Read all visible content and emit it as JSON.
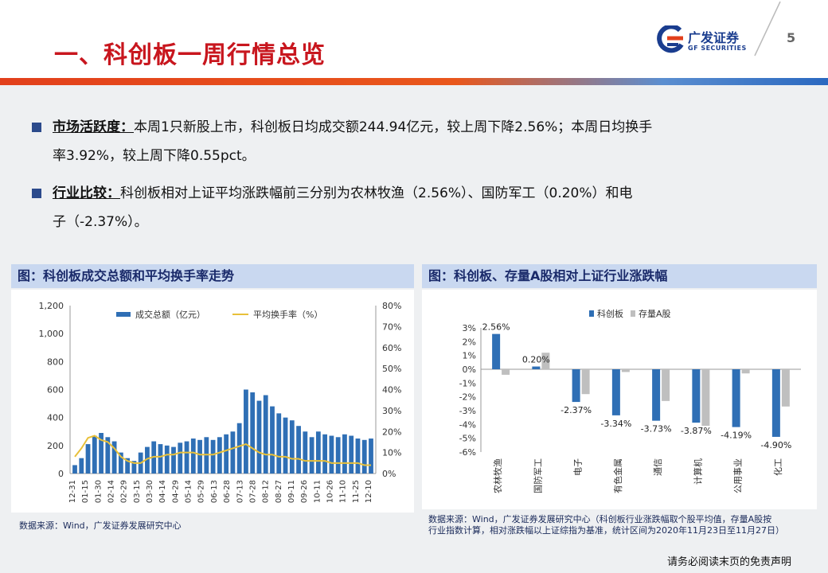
{
  "page": {
    "title": "一、科创板一周行情总览",
    "page_number": "5",
    "disclaimer": "请务必阅读末页的免责声明"
  },
  "logo": {
    "cn": "广发证券",
    "en": "GF SECURITIES",
    "colors": {
      "brand_blue": "#1a3d8f",
      "brand_red": "#e2401c"
    }
  },
  "bullets": [
    {
      "label": "市场活跃度：",
      "line1": "本周1只新股上市，科创板日均成交额244.94亿元，较上周下降2.56%；本周日均换手",
      "line2": "率3.92%，较上周下降0.55pct。"
    },
    {
      "label": "行业比较：",
      "line1": "科创板相对上证平均涨跌幅前三分别为农林牧渔（2.56%）、国防军工（0.20%）和电",
      "line2": "子（-2.37%）。"
    }
  ],
  "left_panel": {
    "title": "图：科创板成交总额和平均换手率走势",
    "source": "数据来源：Wind，广发证券发展研究中心"
  },
  "right_panel": {
    "title": "图：科创板、存量A股相对上证行业涨跌幅",
    "source_line1": "数据来源：Wind，广发证券发展研究中心（科创板行业涨跌幅取个股平均值，存量A股按",
    "source_line2": "行业指数计算，相对涨跌幅以上证综指为基准，统计区间为2020年11月23日至11月27日）"
  },
  "chart_data": [
    {
      "type": "bar",
      "title": "",
      "legend": [
        "成交总额（亿元）",
        "平均换手率（%）"
      ],
      "legend_position": "top",
      "x_ticks": [
        "12-31",
        "01-15",
        "01-30",
        "02-14",
        "02-29",
        "03-15",
        "03-30",
        "04-14",
        "04-29",
        "05-14",
        "05-29",
        "06-13",
        "06-28",
        "07-13",
        "07-28",
        "08-12",
        "08-27",
        "09-11",
        "09-26",
        "10-11",
        "10-26",
        "11-10",
        "11-25",
        "12-10"
      ],
      "y_left_ticks": [
        "0",
        "200",
        "400",
        "600",
        "800",
        "1,000",
        "1,200"
      ],
      "y_left_range": [
        0,
        1200
      ],
      "y_right_ticks": [
        "0%",
        "10%",
        "20%",
        "30%",
        "40%",
        "50%",
        "60%",
        "70%",
        "80%"
      ],
      "y_right_range": [
        0,
        80
      ],
      "colors": {
        "bar": "#2f6fb5",
        "line": "#e8c03a"
      },
      "series": [
        {
          "name": "成交总额（亿元）",
          "type": "bar",
          "points": [
            [
              0,
              60
            ],
            [
              1,
              110
            ],
            [
              2,
              210
            ],
            [
              3,
              270
            ],
            [
              4,
              290
            ],
            [
              5,
              260
            ],
            [
              6,
              230
            ],
            [
              7,
              150
            ],
            [
              8,
              110
            ],
            [
              9,
              90
            ],
            [
              10,
              150
            ],
            [
              11,
              190
            ],
            [
              12,
              230
            ],
            [
              13,
              210
            ],
            [
              14,
              200
            ],
            [
              15,
              190
            ],
            [
              16,
              220
            ],
            [
              17,
              230
            ],
            [
              18,
              250
            ],
            [
              19,
              240
            ],
            [
              20,
              260
            ],
            [
              21,
              240
            ],
            [
              22,
              260
            ],
            [
              23,
              280
            ],
            [
              24,
              300
            ],
            [
              25,
              360
            ],
            [
              26,
              600
            ],
            [
              27,
              580
            ],
            [
              28,
              520
            ],
            [
              29,
              560
            ],
            [
              30,
              480
            ],
            [
              31,
              430
            ],
            [
              32,
              400
            ],
            [
              33,
              380
            ],
            [
              34,
              340
            ],
            [
              35,
              300
            ],
            [
              36,
              260
            ],
            [
              37,
              300
            ],
            [
              38,
              280
            ],
            [
              39,
              270
            ],
            [
              40,
              260
            ],
            [
              41,
              280
            ],
            [
              42,
              270
            ],
            [
              43,
              250
            ],
            [
              44,
              240
            ],
            [
              45,
              250
            ]
          ]
        },
        {
          "name": "平均换手率（%）",
          "type": "line",
          "points": [
            [
              0,
              8
            ],
            [
              1,
              12
            ],
            [
              2,
              17
            ],
            [
              3,
              18
            ],
            [
              4,
              16
            ],
            [
              5,
              15
            ],
            [
              6,
              12
            ],
            [
              7,
              8
            ],
            [
              8,
              6
            ],
            [
              9,
              5
            ],
            [
              10,
              5
            ],
            [
              11,
              7
            ],
            [
              12,
              8
            ],
            [
              13,
              8
            ],
            [
              14,
              9
            ],
            [
              15,
              9
            ],
            [
              16,
              10
            ],
            [
              17,
              10
            ],
            [
              18,
              10
            ],
            [
              19,
              9
            ],
            [
              20,
              9
            ],
            [
              21,
              9
            ],
            [
              22,
              10
            ],
            [
              23,
              11
            ],
            [
              24,
              12
            ],
            [
              25,
              13
            ],
            [
              26,
              14
            ],
            [
              27,
              12
            ],
            [
              28,
              10
            ],
            [
              29,
              9
            ],
            [
              30,
              9
            ],
            [
              31,
              8
            ],
            [
              32,
              8
            ],
            [
              33,
              7
            ],
            [
              34,
              7
            ],
            [
              35,
              6
            ],
            [
              36,
              6
            ],
            [
              37,
              6
            ],
            [
              38,
              6
            ],
            [
              39,
              5
            ],
            [
              40,
              5
            ],
            [
              41,
              5
            ],
            [
              42,
              5
            ],
            [
              43,
              5
            ],
            [
              44,
              4
            ],
            [
              45,
              4
            ]
          ]
        }
      ]
    },
    {
      "type": "bar",
      "title": "",
      "legend": [
        "科创板",
        "存量A股"
      ],
      "legend_position": "top",
      "categories": [
        "农林牧渔",
        "国防军工",
        "电子",
        "有色金属",
        "通信",
        "计算机",
        "公用事业",
        "化工"
      ],
      "y_ticks": [
        "3%",
        "2%",
        "1%",
        "0%",
        "-1%",
        "-2%",
        "-3%",
        "-4%",
        "-5%",
        "-6%"
      ],
      "ylim": [
        -6,
        3
      ],
      "colors": {
        "kcb": "#2f6fb5",
        "a_share": "#bfbfbf"
      },
      "data_labels": [
        "2.56%",
        "0.20%",
        "-2.37%",
        "-3.34%",
        "-3.73%",
        "-3.87%",
        "-4.19%",
        "-4.90%"
      ],
      "series": [
        {
          "name": "科创板",
          "values": [
            2.56,
            0.2,
            -2.37,
            -3.34,
            -3.73,
            -3.87,
            -4.19,
            -4.9
          ]
        },
        {
          "name": "存量A股",
          "values": [
            -0.4,
            1.2,
            -1.8,
            -0.2,
            -2.3,
            -4.1,
            -0.3,
            -2.7
          ]
        }
      ]
    }
  ]
}
